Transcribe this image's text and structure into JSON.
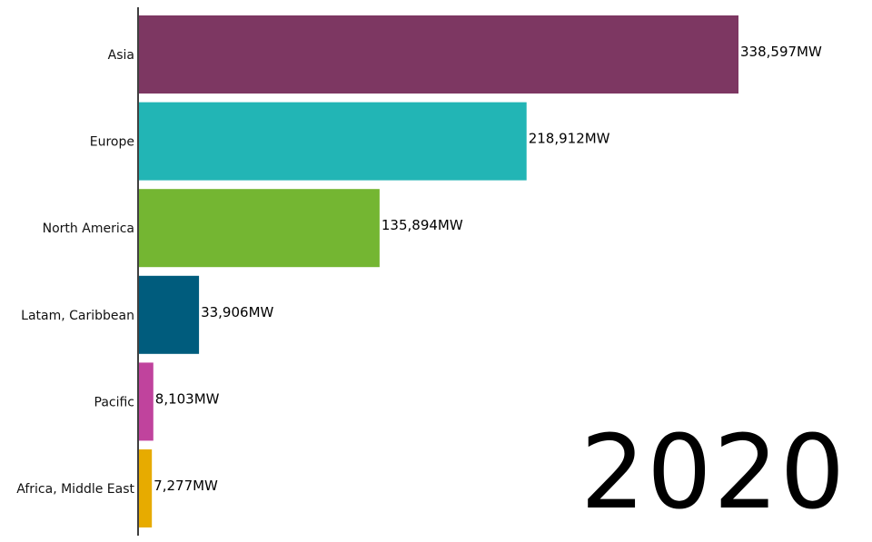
{
  "chart_data": {
    "type": "bar",
    "orientation": "horizontal",
    "categories": [
      "Asia",
      "Europe",
      "North America",
      "Latam, Caribbean",
      "Pacific",
      "Africa, Middle East"
    ],
    "values": [
      338597,
      218912,
      135894,
      33906,
      8103,
      7277
    ],
    "value_labels": [
      "338,597MW",
      "218,912MW",
      "135,894MW",
      "33,906MW",
      "8,103MW",
      "7,277MW"
    ],
    "colors": [
      "#7d3762",
      "#22b5b5",
      "#74b632",
      "#005c7d",
      "#c0439d",
      "#e7ab00"
    ],
    "unit": "MW",
    "xlim": [
      0,
      338597
    ],
    "grid": false,
    "legend": "none"
  },
  "year_label": "2020"
}
